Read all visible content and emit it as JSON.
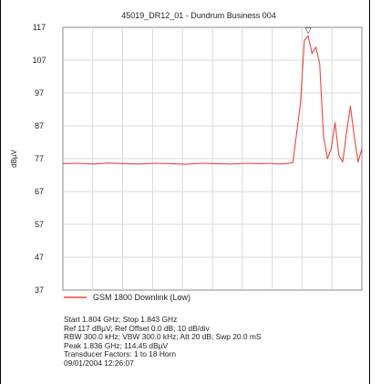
{
  "chart_data": {
    "type": "line",
    "title": "45019_DR12_01 - Dundrum Business 004",
    "ylabel": "dBµV",
    "xlabel": "",
    "ylim": [
      37,
      117
    ],
    "xlim": [
      1.804,
      1.843
    ],
    "yticks": [
      117,
      107,
      97,
      87,
      77,
      67,
      57,
      47,
      37
    ],
    "grid": true,
    "legend_position": "bottom",
    "line_color": "#e8463f",
    "series": [
      {
        "name": "GSM 1800 Downlink (Low)",
        "x": [
          1.804,
          1.806,
          1.808,
          1.81,
          1.812,
          1.814,
          1.816,
          1.818,
          1.82,
          1.822,
          1.824,
          1.826,
          1.828,
          1.83,
          1.831,
          1.832,
          1.833,
          1.834,
          1.835,
          1.8355,
          1.836,
          1.8365,
          1.837,
          1.8375,
          1.838,
          1.8385,
          1.839,
          1.8395,
          1.84,
          1.8405,
          1.841,
          1.8415,
          1.842,
          1.8425,
          1.843
        ],
        "values": [
          75.5,
          75.6,
          75.4,
          75.7,
          75.5,
          75.4,
          75.6,
          75.5,
          75.3,
          75.6,
          75.5,
          75.4,
          75.6,
          75.5,
          75.6,
          75.4,
          75.5,
          75.8,
          94,
          113,
          114.45,
          109,
          111,
          106,
          84,
          77,
          80,
          88,
          78,
          76,
          85,
          93,
          84,
          76,
          80
        ]
      }
    ],
    "marker": {
      "symbol": "▽",
      "x": 1.836,
      "y": 114.45
    }
  },
  "info_lines": [
    "Start 1.804 GHz; Stop 1.843 GHz",
    "Ref 117 dBµV; Ref Offset 0.0 dB; 10 dB/div",
    "RBW 300.0 kHz; VBW 300.0 kHz; Att 20 dB; Swp 20.0 mS",
    "Peak 1.836 GHz; 114.45 dBµV",
    "Transducer Factors: 1 to 18 Horn",
    "09/01/2004 12:26:07"
  ]
}
